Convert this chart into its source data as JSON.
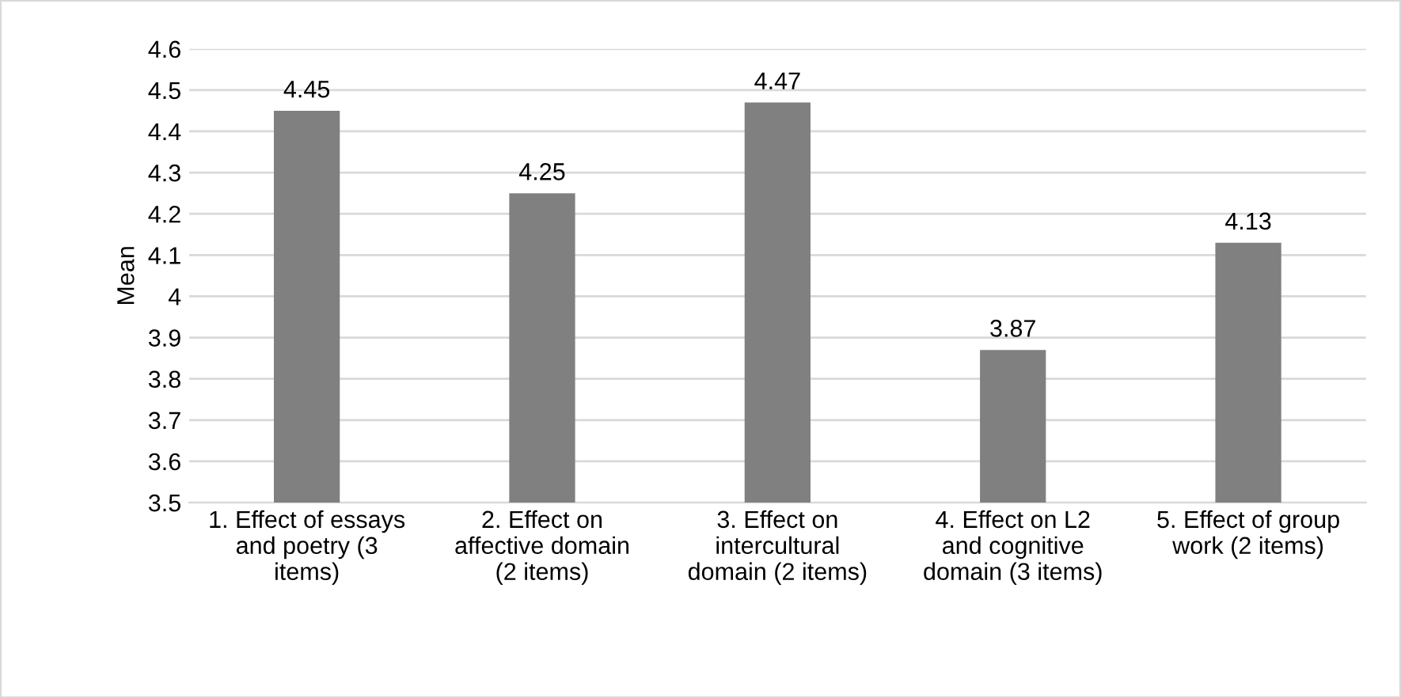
{
  "chart_data": {
    "type": "bar",
    "ylabel": "Mean",
    "categories": [
      "1. Effect of essays\nand poetry (3\nitems)",
      "2. Effect on\naffective domain\n(2 items)",
      "3. Effect on\nintercultural\ndomain (2 items)",
      "4. Effect on L2\nand cognitive\ndomain (3 items)",
      "5. Effect of group\nwork (2 items)"
    ],
    "values": [
      4.45,
      4.25,
      4.47,
      3.87,
      4.13
    ],
    "color": "#808080",
    "ylim": [
      3.5,
      4.6
    ],
    "yticks": [
      3.5,
      3.6,
      3.7,
      3.8,
      3.9,
      4,
      4.1,
      4.2,
      4.3,
      4.4,
      4.5,
      4.6
    ],
    "grid": "y",
    "data_labels": true,
    "legend": false
  }
}
